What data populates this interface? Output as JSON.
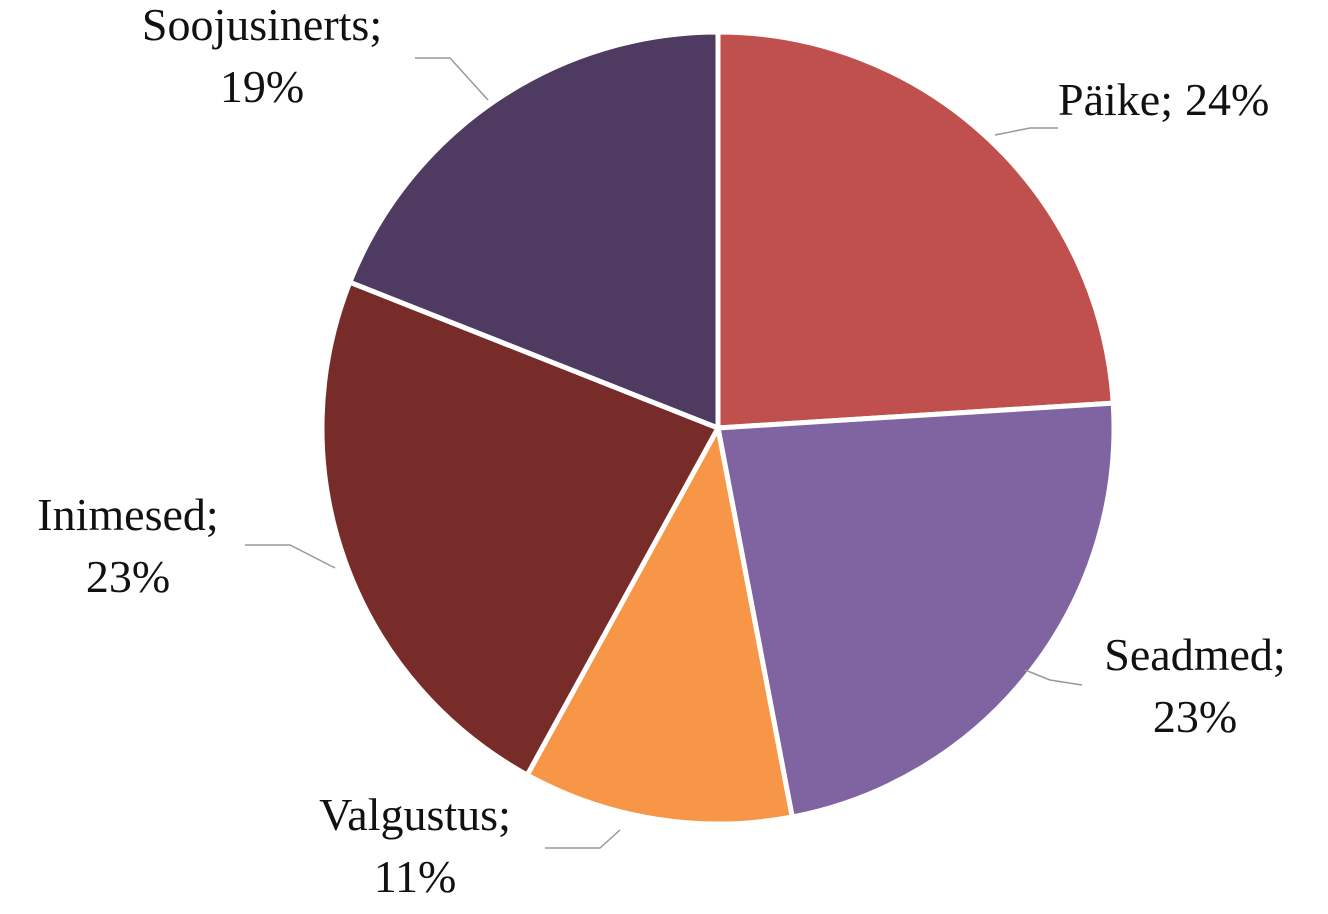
{
  "chart_data": {
    "type": "pie",
    "categories": [
      "Päike",
      "Seadmed",
      "Valgustus",
      "Inimesed",
      "Soojusinerts"
    ],
    "values": [
      24,
      23,
      11,
      23,
      19
    ],
    "value_labels": [
      "24%",
      "23%",
      "11%",
      "23%",
      "19%"
    ],
    "separator": ";",
    "colors": [
      "#c0504d",
      "#8064a2",
      "#f79646",
      "#772c2a",
      "#4f3b62"
    ]
  }
}
